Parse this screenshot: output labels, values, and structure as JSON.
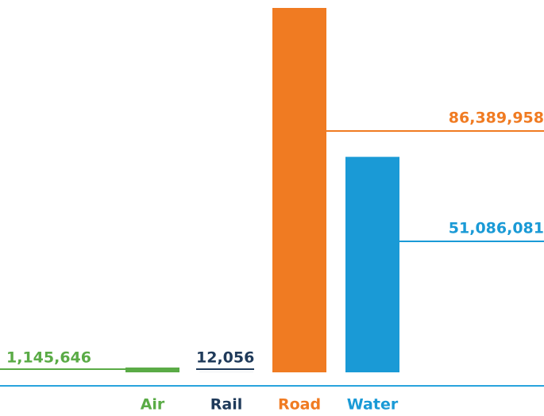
{
  "chart_data": {
    "type": "bar",
    "categories": [
      "Air",
      "Rail",
      "Road",
      "Water"
    ],
    "values": [
      1145646,
      12056,
      86389958,
      51086081
    ],
    "value_labels": [
      "1,145,646",
      "12,056",
      "86,389,958",
      "51,086,081"
    ],
    "colors": [
      "#5aab46",
      "#1f3a5a",
      "#f07b22",
      "#1a9ad6"
    ]
  }
}
